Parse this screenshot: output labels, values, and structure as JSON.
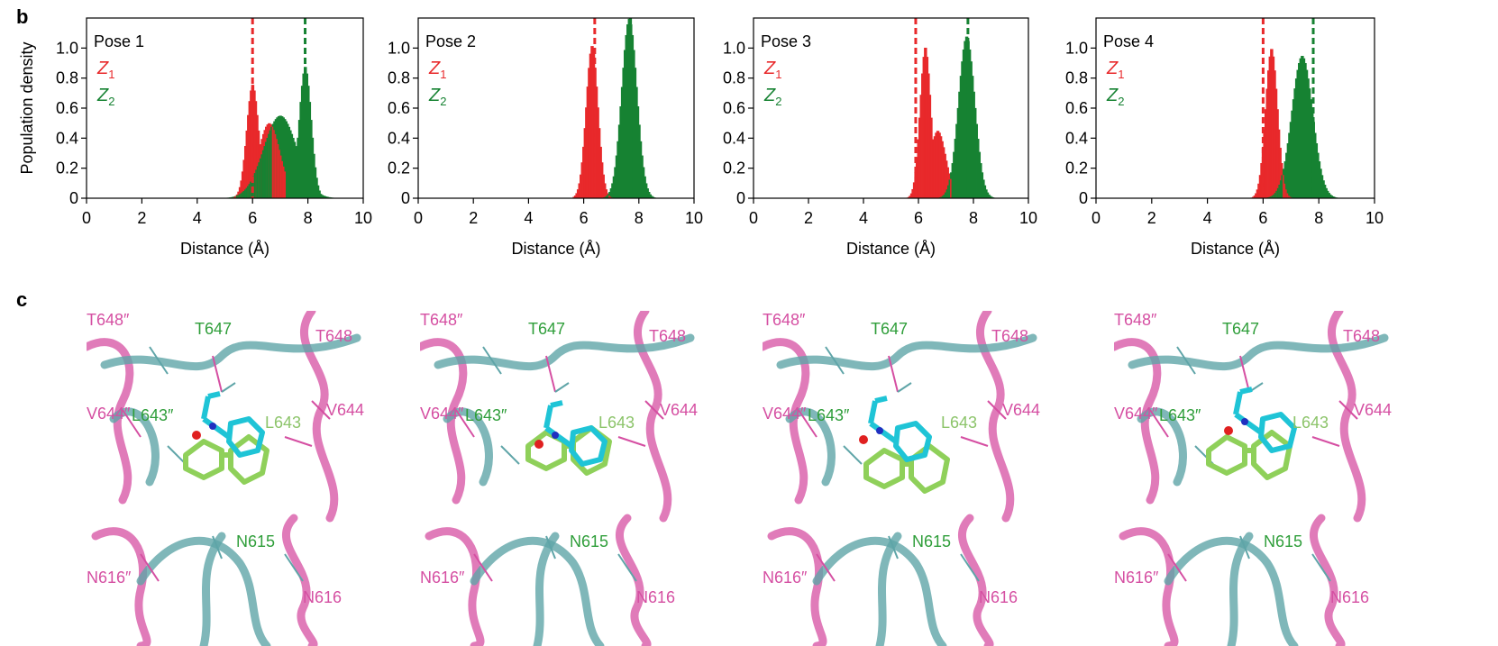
{
  "panels": {
    "b": "b",
    "c": "c"
  },
  "colors": {
    "z1": "#e8292b",
    "z2": "#168232",
    "pink": "#d54fa2",
    "teal": "#5fa5a8",
    "cyan": "#1fc4d6",
    "lime": "#8fd05a"
  },
  "chart_data": [
    {
      "type": "histogram",
      "title": "Pose 1",
      "xlabel": "Distance (Å)",
      "ylabel": "Population density",
      "xlim": [
        0,
        10
      ],
      "ylim": [
        0,
        1.2
      ],
      "xticks": [
        "0",
        "2",
        "4",
        "6",
        "8",
        "10"
      ],
      "yticks": [
        "0",
        "0.2",
        "0.4",
        "0.6",
        "0.8",
        "1.0"
      ],
      "legend": [
        {
          "name": "Z",
          "sub": "1"
        },
        {
          "name": "Z",
          "sub": "2"
        }
      ],
      "dashed_lines": [
        6.0,
        7.9
      ],
      "series": [
        {
          "name": "Z1",
          "peaks": [
            {
              "center": 6.0,
              "height": 0.76,
              "width": 0.22
            },
            {
              "center": 6.6,
              "height": 0.5,
              "width": 0.4
            }
          ],
          "range": [
            5.3,
            7.2
          ]
        },
        {
          "name": "Z2",
          "peaks": [
            {
              "center": 7.9,
              "height": 0.88,
              "width": 0.22
            },
            {
              "center": 7.0,
              "height": 0.55,
              "width": 0.6
            }
          ],
          "range": [
            4.5,
            9.5
          ]
        }
      ]
    },
    {
      "type": "histogram",
      "title": "Pose 2",
      "xlabel": "Distance (Å)",
      "ylabel": "",
      "xlim": [
        0,
        10
      ],
      "ylim": [
        0,
        1.2
      ],
      "xticks": [
        "0",
        "2",
        "4",
        "6",
        "8",
        "10"
      ],
      "yticks": [
        "0",
        "0.2",
        "0.4",
        "0.6",
        "0.8",
        "1.0"
      ],
      "legend": [
        {
          "name": "Z",
          "sub": "1"
        },
        {
          "name": "Z",
          "sub": "2"
        }
      ],
      "dashed_lines": [
        6.4,
        7.7
      ],
      "series": [
        {
          "name": "Z1",
          "peaks": [
            {
              "center": 6.3,
              "height": 1.02,
              "width": 0.22
            }
          ],
          "range": [
            5.6,
            7.2
          ]
        },
        {
          "name": "Z2",
          "peaks": [
            {
              "center": 7.65,
              "height": 1.2,
              "width": 0.28
            }
          ],
          "range": [
            6.4,
            9.0
          ]
        }
      ]
    },
    {
      "type": "histogram",
      "title": "Pose 3",
      "xlabel": "Distance (Å)",
      "ylabel": "",
      "xlim": [
        0,
        10
      ],
      "ylim": [
        0,
        1.2
      ],
      "xticks": [
        "0",
        "2",
        "4",
        "6",
        "8",
        "10"
      ],
      "yticks": [
        "0",
        "0.2",
        "0.4",
        "0.6",
        "0.8",
        "1.0"
      ],
      "legend": [
        {
          "name": "Z",
          "sub": "1"
        },
        {
          "name": "Z",
          "sub": "2"
        }
      ],
      "dashed_lines": [
        5.9,
        7.8
      ],
      "series": [
        {
          "name": "Z1",
          "peaks": [
            {
              "center": 6.25,
              "height": 1.01,
              "width": 0.2
            },
            {
              "center": 6.7,
              "height": 0.45,
              "width": 0.3
            }
          ],
          "range": [
            4.5,
            7.2
          ]
        },
        {
          "name": "Z2",
          "peaks": [
            {
              "center": 7.75,
              "height": 1.08,
              "width": 0.3
            }
          ],
          "range": [
            6.0,
            9.0
          ]
        }
      ]
    },
    {
      "type": "histogram",
      "title": "Pose 4",
      "xlabel": "Distance (Å)",
      "ylabel": "",
      "xlim": [
        0,
        10
      ],
      "ylim": [
        0,
        1.2
      ],
      "xticks": [
        "0",
        "2",
        "4",
        "6",
        "8",
        "10"
      ],
      "yticks": [
        "0",
        "0.2",
        "0.4",
        "0.6",
        "0.8",
        "1.0"
      ],
      "legend": [
        {
          "name": "Z",
          "sub": "1"
        },
        {
          "name": "Z",
          "sub": "2"
        }
      ],
      "dashed_lines": [
        6.0,
        7.8
      ],
      "series": [
        {
          "name": "Z1",
          "peaks": [
            {
              "center": 6.3,
              "height": 1.0,
              "width": 0.22
            }
          ],
          "range": [
            5.0,
            10.0
          ]
        },
        {
          "name": "Z2",
          "peaks": [
            {
              "center": 7.4,
              "height": 0.95,
              "width": 0.38
            }
          ],
          "range": [
            4.6,
            9.0
          ]
        }
      ]
    }
  ],
  "structures": [
    {
      "labels": [
        "T648″",
        "T647",
        "T648",
        "V644″",
        "L643″",
        "L643",
        "V644",
        "N615",
        "N616″",
        "N616"
      ]
    },
    {
      "labels": [
        "T648″",
        "T647",
        "T648",
        "V644″",
        "L643″",
        "L643",
        "V644",
        "N615",
        "N616″",
        "N616"
      ]
    },
    {
      "labels": [
        "T648″",
        "T647",
        "T648",
        "V644″",
        "L643″",
        "L643",
        "V644",
        "N615",
        "N616″",
        "N616"
      ]
    },
    {
      "labels": [
        "T648″",
        "T647",
        "T648",
        "V644″",
        "L643″",
        "L643",
        "V644",
        "N615",
        "N616″",
        "N616"
      ]
    }
  ]
}
